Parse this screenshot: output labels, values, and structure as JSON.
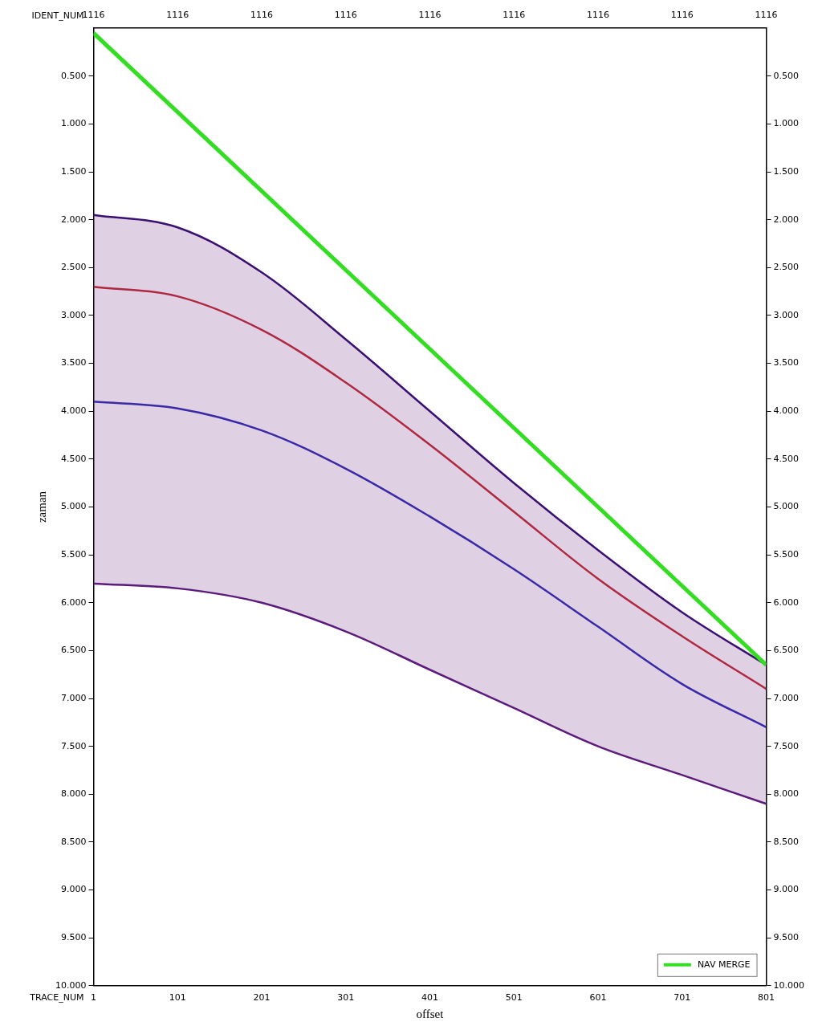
{
  "chart_data": {
    "type": "line",
    "x_label": "offset",
    "y_label": "zaman",
    "x_tick_title": "TRACE_NUM",
    "x2_label": "IDENT_NUM",
    "xlim": [
      1,
      801
    ],
    "xticks": [
      1,
      101,
      201,
      301,
      401,
      501,
      601,
      701,
      801
    ],
    "x2ticks": [
      {
        "value": 1,
        "label": "1116"
      },
      {
        "value": 101,
        "label": "1116"
      },
      {
        "value": 201,
        "label": "1116"
      },
      {
        "value": 301,
        "label": "1116"
      },
      {
        "value": 401,
        "label": "1116"
      },
      {
        "value": 501,
        "label": "1116"
      },
      {
        "value": 601,
        "label": "1116"
      },
      {
        "value": 701,
        "label": "1116"
      },
      {
        "value": 801,
        "label": "1116"
      }
    ],
    "ylim": [
      0,
      10
    ],
    "yticks": [
      {
        "value": 0.5,
        "label": "0.500"
      },
      {
        "value": 1,
        "label": "1.000"
      },
      {
        "value": 1.5,
        "label": "1.500"
      },
      {
        "value": 2,
        "label": "2.000"
      },
      {
        "value": 2.5,
        "label": "2.500"
      },
      {
        "value": 3,
        "label": "3.000"
      },
      {
        "value": 3.5,
        "label": "3.500"
      },
      {
        "value": 4,
        "label": "4.000"
      },
      {
        "value": 4.5,
        "label": "4.500"
      },
      {
        "value": 5,
        "label": "5.000"
      },
      {
        "value": 5.5,
        "label": "5.500"
      },
      {
        "value": 6,
        "label": "6.000"
      },
      {
        "value": 6.5,
        "label": "6.500"
      },
      {
        "value": 7,
        "label": "7.000"
      },
      {
        "value": 7.5,
        "label": "7.500"
      },
      {
        "value": 8,
        "label": "8.000"
      },
      {
        "value": 8.5,
        "label": "8.500"
      },
      {
        "value": 9,
        "label": "9.000"
      },
      {
        "value": 9.5,
        "label": "9.500"
      },
      {
        "value": 10,
        "label": "10.000"
      }
    ],
    "grid": false,
    "legend": "lower right",
    "series": [
      {
        "name": "NAV MERGE",
        "color": "#33dd22",
        "line_style": "solid",
        "x": [
          1,
          801
        ],
        "values": [
          0.05,
          6.65
        ]
      },
      {
        "color": "#3a1070",
        "line_style": "solid",
        "x": [
          1,
          101,
          201,
          301,
          401,
          501,
          601,
          701,
          801
        ],
        "values": [
          1.95,
          2.08,
          2.55,
          3.25,
          4.0,
          4.75,
          5.45,
          6.1,
          6.65
        ]
      },
      {
        "color": "#c0282d",
        "line_style": "solid",
        "x": [
          1,
          101,
          201,
          301,
          401,
          501,
          601,
          701,
          801
        ],
        "values": [
          2.7,
          2.8,
          3.15,
          3.7,
          4.35,
          5.05,
          5.75,
          6.35,
          6.9
        ]
      },
      {
        "color": "#2a2ab0",
        "line_style": "solid",
        "x": [
          1,
          101,
          201,
          301,
          401,
          501,
          601,
          701,
          801
        ],
        "values": [
          3.9,
          3.97,
          4.2,
          4.6,
          5.1,
          5.65,
          6.25,
          6.85,
          7.3
        ]
      },
      {
        "color": "#5a1a7a",
        "line_style": "solid",
        "x": [
          1,
          101,
          201,
          301,
          401,
          501,
          601,
          701,
          801
        ],
        "values": [
          5.8,
          5.85,
          6.0,
          6.3,
          6.7,
          7.1,
          7.5,
          7.8,
          8.1
        ]
      }
    ]
  }
}
